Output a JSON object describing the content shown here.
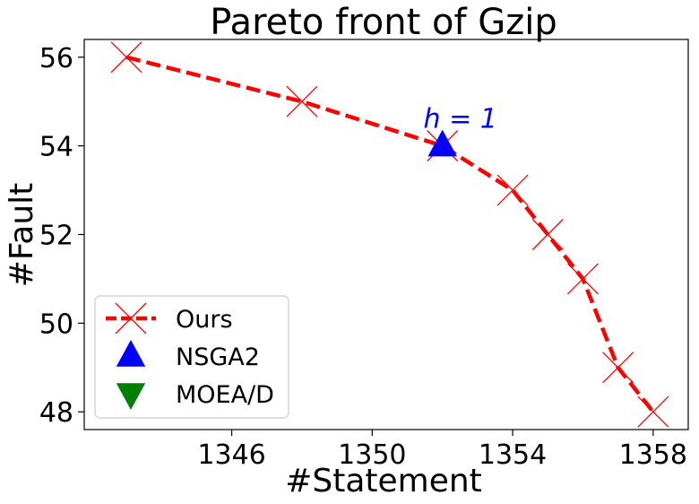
{
  "chart_data": {
    "type": "scatter",
    "title": "Pareto front of Gzip",
    "xlabel": "#Statement",
    "ylabel": "#Fault",
    "xlim": [
      1341.8,
      1359.0
    ],
    "ylim": [
      47.6,
      56.4
    ],
    "xticks": [
      1346,
      1350,
      1354,
      1358
    ],
    "yticks": [
      48,
      50,
      52,
      54,
      56
    ],
    "grid": false,
    "legend_position": "lower-left",
    "series": [
      {
        "name": "Ours",
        "marker": "x",
        "line": "dashed",
        "color": "#ff0000",
        "points": [
          {
            "x": 1343,
            "y": 56
          },
          {
            "x": 1348,
            "y": 55
          },
          {
            "x": 1352,
            "y": 54
          },
          {
            "x": 1354,
            "y": 53
          },
          {
            "x": 1355,
            "y": 52
          },
          {
            "x": 1356,
            "y": 51
          },
          {
            "x": 1357,
            "y": 49
          },
          {
            "x": 1358,
            "y": 48
          }
        ]
      },
      {
        "name": "NSGA2",
        "marker": "triangle-up",
        "color": "#0000ff",
        "points": [
          {
            "x": 1352,
            "y": 54
          }
        ]
      },
      {
        "name": "MOEA/D",
        "marker": "triangle-down",
        "color": "#008000",
        "points": []
      }
    ],
    "annotations": [
      {
        "text": "h = 1",
        "x": 1352,
        "y": 54.45,
        "color": "#0000ff"
      }
    ]
  }
}
